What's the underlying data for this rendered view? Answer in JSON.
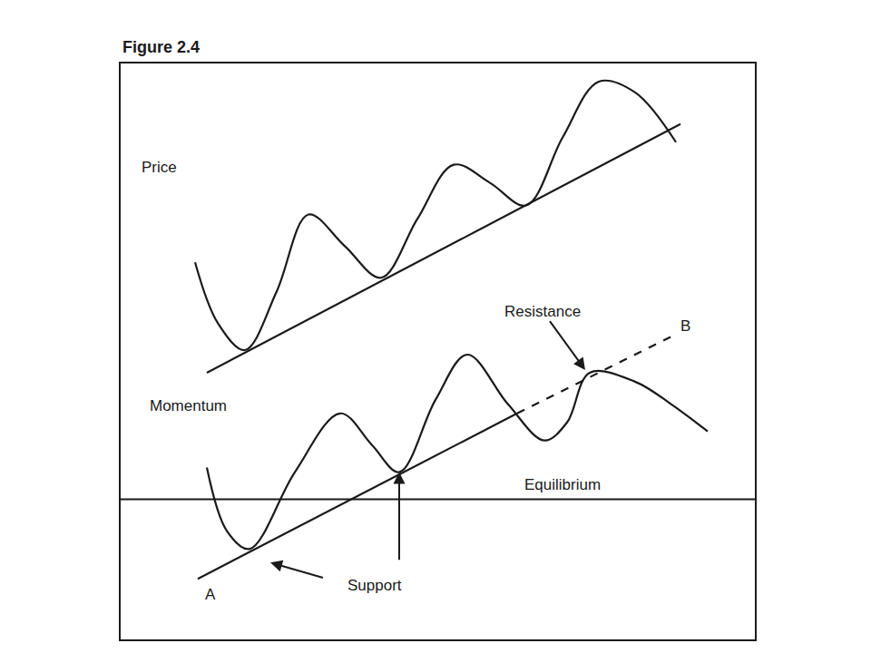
{
  "chart_data": {
    "type": "line",
    "title": "Figure 2.4",
    "xlim": [
      133,
      832
    ],
    "ylim": [
      15,
      652
    ],
    "tick_labels": false,
    "grid": false,
    "series": [
      {
        "name": "Price",
        "color": "#1a1a1a",
        "line_style": "solid",
        "x": [
          215,
          240,
          270,
          305,
          340,
          380,
          420,
          460,
          500,
          540,
          580,
          620,
          660,
          700,
          745
        ],
        "values": [
          432,
          365,
          335,
          400,
          485,
          450,
          415,
          480,
          540,
          520,
          495,
          570,
          632,
          620,
          565
        ]
      },
      {
        "color": "#1a1a1a",
        "line_style": "solid",
        "x": [
          228,
          750
        ],
        "values": [
          310,
          585
        ]
      },
      {
        "name": "Momentum",
        "color": "#1a1a1a",
        "line_style": "solid",
        "x": [
          228,
          250,
          275,
          325,
          375,
          410,
          440,
          480,
          515,
          560,
          600,
          625,
          650,
          700,
          740,
          780
        ],
        "values": [
          205,
          135,
          115,
          200,
          265,
          230,
          200,
          280,
          330,
          275,
          235,
          255,
          310,
          300,
          275,
          245
        ]
      },
      {
        "color": "#1a1a1a",
        "line_style": "solid",
        "x": [
          218,
          570
        ],
        "values": [
          82,
          265
        ]
      },
      {
        "color": "#1a1a1a",
        "line_style": "dashed",
        "x": [
          570,
          740
        ],
        "values": [
          265,
          350
        ]
      },
      {
        "name": "Equilibrium",
        "color": "#1a1a1a",
        "line_style": "solid",
        "x": [
          133,
          832
        ],
        "values": [
          170,
          170
        ]
      }
    ],
    "annotations": [
      "Resistance",
      "Support",
      "A",
      "B"
    ]
  }
}
